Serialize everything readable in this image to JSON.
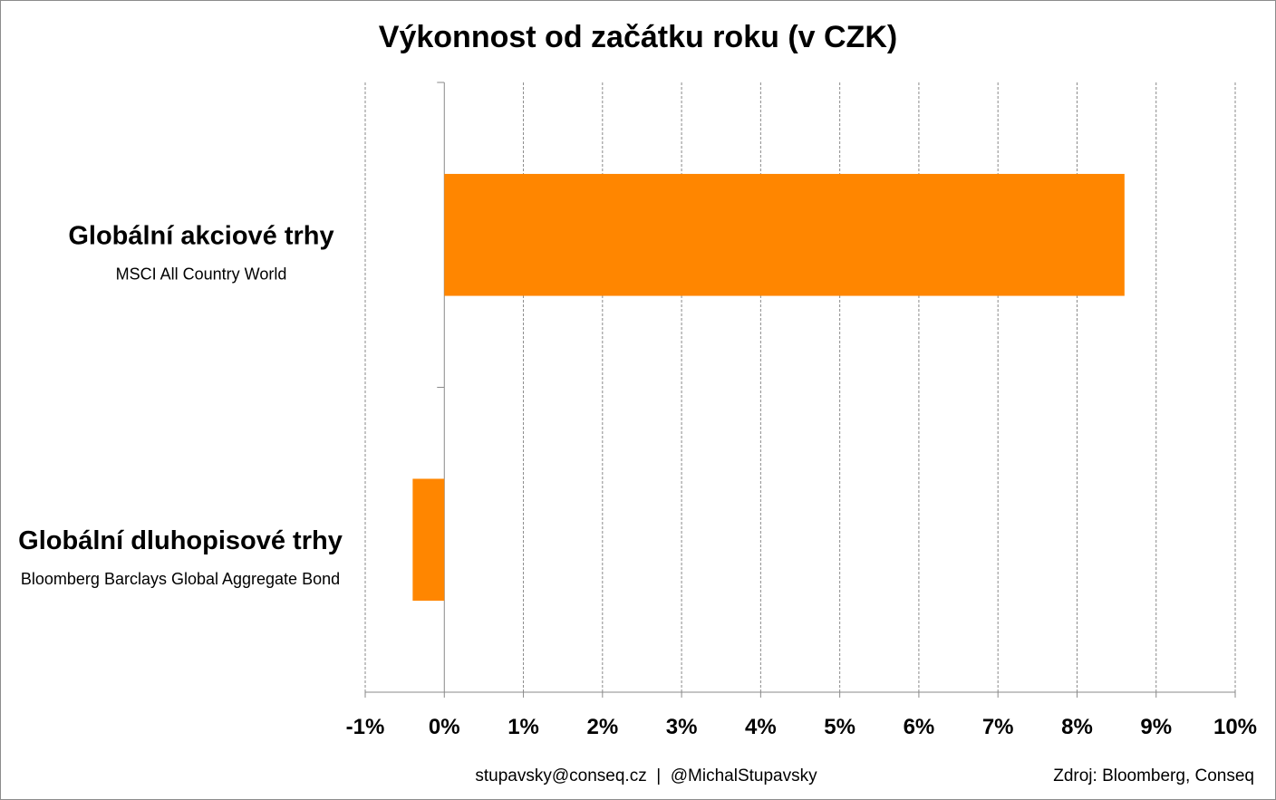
{
  "chart_data": {
    "type": "bar",
    "orientation": "horizontal",
    "title": "Výkonnost od začátku roku (v CZK)",
    "categories": [
      {
        "name": "Globální akciové trhy",
        "subtitle": "MSCI All Country World"
      },
      {
        "name": "Globální dluhopisové trhy",
        "subtitle": "Bloomberg Barclays Global Aggregate Bond"
      }
    ],
    "values": [
      8.6,
      -0.4
    ],
    "unit": "%",
    "xlim": [
      -1,
      10
    ],
    "xticks": [
      "-1%",
      "0%",
      "1%",
      "2%",
      "3%",
      "4%",
      "5%",
      "6%",
      "7%",
      "8%",
      "9%",
      "10%"
    ],
    "grid": "vertical-dashed",
    "bar_color": "#ff8600",
    "legend": "none"
  },
  "footer": {
    "contact": "stupavsky@conseq.cz  |  @MichalStupavsky",
    "source": "Zdroj: Bloomberg, Conseq"
  }
}
